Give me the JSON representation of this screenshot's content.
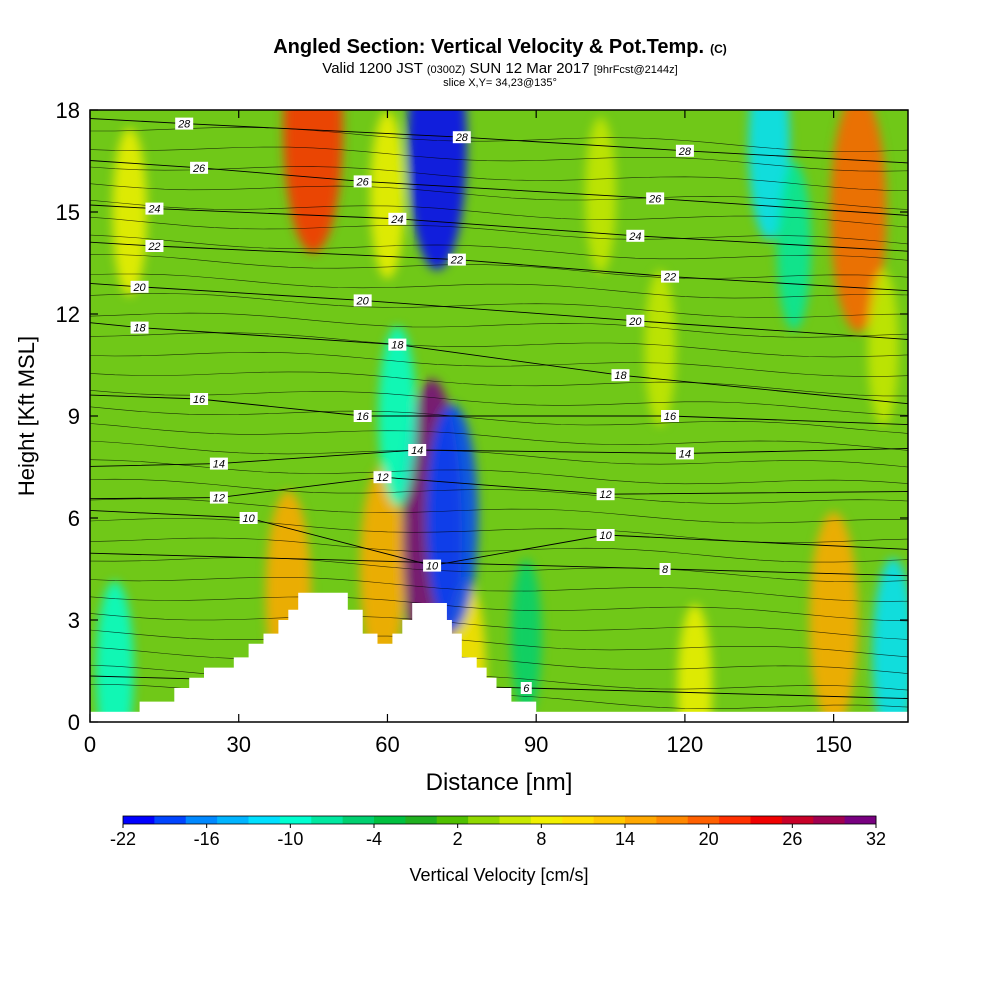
{
  "title": {
    "main": "Angled Section: Vertical Velocity & Pot.Temp.",
    "main_mark": "(C)",
    "valid_prefix": "Valid 1200 JST",
    "valid_utc": "(0300Z)",
    "valid_date": "SUN 12 Mar 2017",
    "forecast": "[9hrFcst@2144z]",
    "slice": "slice X,Y= 34,23@135°"
  },
  "chart_data": {
    "type": "heatmap",
    "description_type": "cross-section filled contour with isentrope line contours",
    "xlabel": "Distance [nm]",
    "ylabel": "Height [Kft MSL]",
    "xlim": [
      0,
      165
    ],
    "ylim": [
      0,
      18
    ],
    "x_ticks": [
      0,
      30,
      60,
      90,
      120,
      150
    ],
    "y_ticks": [
      0,
      3,
      6,
      9,
      12,
      15,
      18
    ],
    "colorbar": {
      "label": "Vertical Velocity [cm/s]",
      "tick_labels": [
        "-22",
        "-16",
        "-10",
        "-4",
        "2",
        "8",
        "14",
        "20",
        "26",
        "32"
      ],
      "min": -22,
      "max": 32,
      "colors": [
        "#0000ff",
        "#0044ff",
        "#0088ff",
        "#00b4ff",
        "#00e0ff",
        "#00ffd0",
        "#00e8a0",
        "#00d070",
        "#00c040",
        "#20b020",
        "#50c000",
        "#90d800",
        "#c8e800",
        "#f0f000",
        "#ffe000",
        "#ffc800",
        "#ffa800",
        "#ff8800",
        "#ff6000",
        "#ff3000",
        "#f00000",
        "#c80028",
        "#a00050",
        "#780080"
      ]
    },
    "updrafts": [
      {
        "x": 8,
        "z": 15.0,
        "w": 8
      },
      {
        "x": 40,
        "z": 3.8,
        "w": 14
      },
      {
        "x": 45,
        "z": 17.5,
        "w": 22
      },
      {
        "x": 59,
        "z": 4.5,
        "w": 14
      },
      {
        "x": 60,
        "z": 15.5,
        "w": 8
      },
      {
        "x": 69,
        "z": 5.5,
        "w": 32
      },
      {
        "x": 76,
        "z": 1.5,
        "w": 10
      },
      {
        "x": 103,
        "z": 15.5,
        "w": 6
      },
      {
        "x": 115,
        "z": 11.0,
        "w": 6
      },
      {
        "x": 122,
        "z": 1.0,
        "w": 8
      },
      {
        "x": 150,
        "z": 3.0,
        "w": 16
      },
      {
        "x": 155,
        "z": 15.0,
        "w": 20
      },
      {
        "x": 160,
        "z": 11.0,
        "w": 6
      }
    ],
    "downdrafts": [
      {
        "x": 5,
        "z": 1.5,
        "w": -10
      },
      {
        "x": 70,
        "z": 17.0,
        "w": -22
      },
      {
        "x": 73,
        "z": 6.0,
        "w": -18
      },
      {
        "x": 62,
        "z": 9.0,
        "w": -10
      },
      {
        "x": 88,
        "z": 2.5,
        "w": -6
      },
      {
        "x": 137,
        "z": 17.0,
        "w": -12
      },
      {
        "x": 142,
        "z": 14.0,
        "w": -8
      },
      {
        "x": 162,
        "z": 2.0,
        "w": -12
      }
    ],
    "terrain_profile": [
      [
        10,
        0.6
      ],
      [
        17,
        0.6
      ],
      [
        17,
        1.0
      ],
      [
        20,
        1.0
      ],
      [
        20,
        1.3
      ],
      [
        23,
        1.3
      ],
      [
        23,
        1.6
      ],
      [
        29,
        1.6
      ],
      [
        29,
        1.9
      ],
      [
        32,
        1.9
      ],
      [
        32,
        2.3
      ],
      [
        35,
        2.3
      ],
      [
        35,
        2.6
      ],
      [
        38,
        2.6
      ],
      [
        38,
        3.0
      ],
      [
        40,
        3.0
      ],
      [
        40,
        3.3
      ],
      [
        42,
        3.3
      ],
      [
        42,
        3.8
      ],
      [
        52,
        3.8
      ],
      [
        52,
        3.3
      ],
      [
        55,
        3.3
      ],
      [
        55,
        2.6
      ],
      [
        58,
        2.6
      ],
      [
        58,
        2.3
      ],
      [
        61,
        2.3
      ],
      [
        61,
        2.6
      ],
      [
        63,
        2.6
      ],
      [
        63,
        3.0
      ],
      [
        65,
        3.0
      ],
      [
        65,
        3.5
      ],
      [
        72,
        3.5
      ],
      [
        72,
        3.0
      ],
      [
        73,
        3.0
      ],
      [
        73,
        2.6
      ],
      [
        75,
        2.6
      ],
      [
        75,
        1.9
      ],
      [
        78,
        1.9
      ],
      [
        78,
        1.6
      ],
      [
        80,
        1.6
      ],
      [
        80,
        1.3
      ],
      [
        82,
        1.3
      ],
      [
        82,
        1.0
      ],
      [
        85,
        1.0
      ],
      [
        85,
        0.6
      ],
      [
        90,
        0.6
      ],
      [
        90,
        0.3
      ]
    ],
    "isentropes": [
      {
        "label": "8",
        "x_label": 116,
        "z_label": 4.5
      },
      {
        "label": "10",
        "x_label": 32,
        "z_label": 6.0
      },
      {
        "label": "10",
        "x_label": 104,
        "z_label": 5.5
      },
      {
        "label": "10",
        "x_label": 69,
        "z_label": 4.6
      },
      {
        "label": "12",
        "x_label": 26,
        "z_label": 6.6
      },
      {
        "label": "12",
        "x_label": 59,
        "z_label": 7.2
      },
      {
        "label": "12",
        "x_label": 104,
        "z_label": 6.7
      },
      {
        "label": "14",
        "x_label": 26,
        "z_label": 7.6
      },
      {
        "label": "14",
        "x_label": 66,
        "z_label": 8.0
      },
      {
        "label": "14",
        "x_label": 120,
        "z_label": 7.9
      },
      {
        "label": "16",
        "x_label": 22,
        "z_label": 9.5
      },
      {
        "label": "16",
        "x_label": 55,
        "z_label": 9.0
      },
      {
        "label": "16",
        "x_label": 117,
        "z_label": 9.0
      },
      {
        "label": "18",
        "x_label": 10,
        "z_label": 11.6
      },
      {
        "label": "18",
        "x_label": 62,
        "z_label": 11.1
      },
      {
        "label": "18",
        "x_label": 107,
        "z_label": 10.2
      },
      {
        "label": "20",
        "x_label": 10,
        "z_label": 12.8
      },
      {
        "label": "20",
        "x_label": 55,
        "z_label": 12.4
      },
      {
        "label": "20",
        "x_label": 110,
        "z_label": 11.8
      },
      {
        "label": "22",
        "x_label": 13,
        "z_label": 14.0
      },
      {
        "label": "22",
        "x_label": 74,
        "z_label": 13.6
      },
      {
        "label": "22",
        "x_label": 117,
        "z_label": 13.1
      },
      {
        "label": "24",
        "x_label": 13,
        "z_label": 15.1
      },
      {
        "label": "24",
        "x_label": 62,
        "z_label": 14.8
      },
      {
        "label": "24",
        "x_label": 110,
        "z_label": 14.3
      },
      {
        "label": "26",
        "x_label": 22,
        "z_label": 16.3
      },
      {
        "label": "26",
        "x_label": 55,
        "z_label": 15.9
      },
      {
        "label": "26",
        "x_label": 114,
        "z_label": 15.4
      },
      {
        "label": "28",
        "x_label": 19,
        "z_label": 17.6
      },
      {
        "label": "28",
        "x_label": 75,
        "z_label": 17.2
      },
      {
        "label": "28",
        "x_label": 120,
        "z_label": 16.8
      },
      {
        "label": "6",
        "x_label": 88,
        "z_label": 1.0
      }
    ]
  }
}
